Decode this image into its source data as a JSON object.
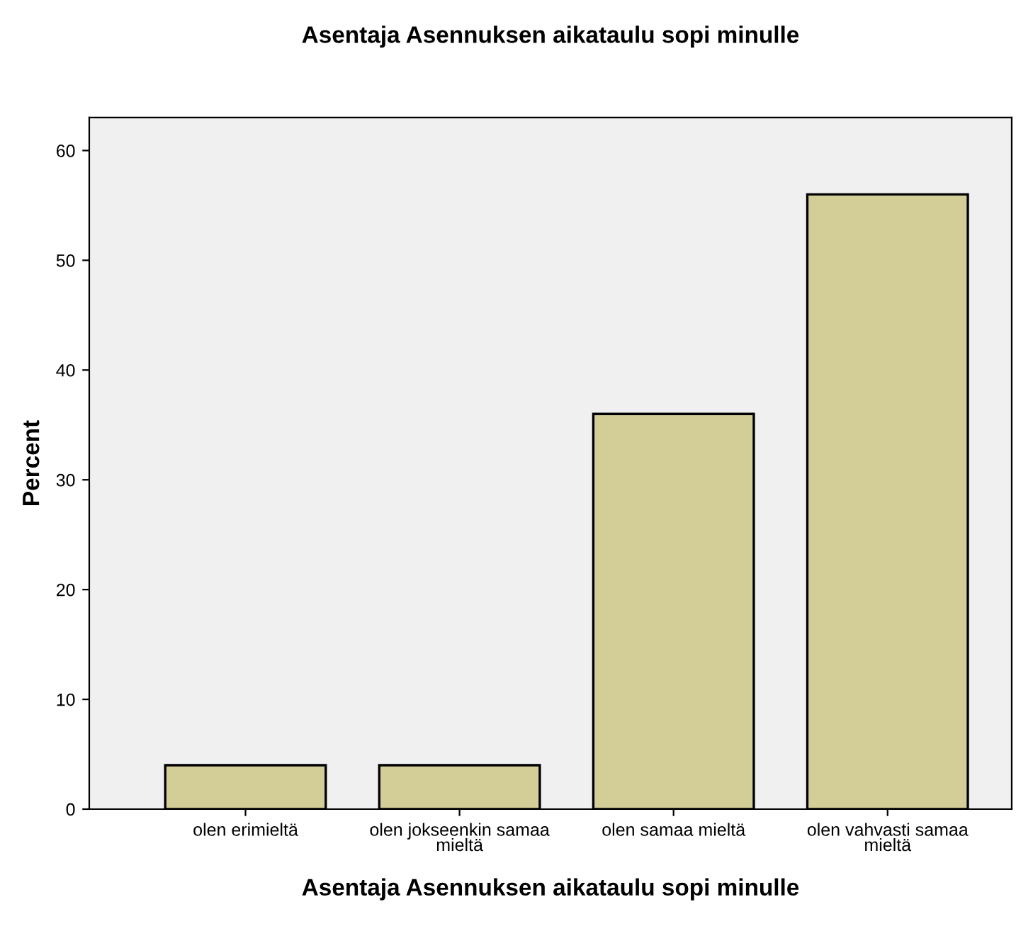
{
  "chart_data": {
    "type": "bar",
    "title": "Asentaja Asennuksen aikataulu sopi minulle",
    "xlabel": "Asentaja Asennuksen aikataulu sopi minulle",
    "ylabel": "Percent",
    "categories": [
      "olen erimieltä",
      "olen jokseenkin samaa mieltä",
      "olen samaa mieltä",
      "olen vahvasti samaa mieltä"
    ],
    "values": [
      4,
      4,
      36,
      56
    ],
    "color": "#d3ce97",
    "ylim": [
      0,
      63
    ],
    "yticks": [
      0,
      10,
      20,
      30,
      40,
      50,
      60
    ],
    "grid": false,
    "legend": false
  }
}
